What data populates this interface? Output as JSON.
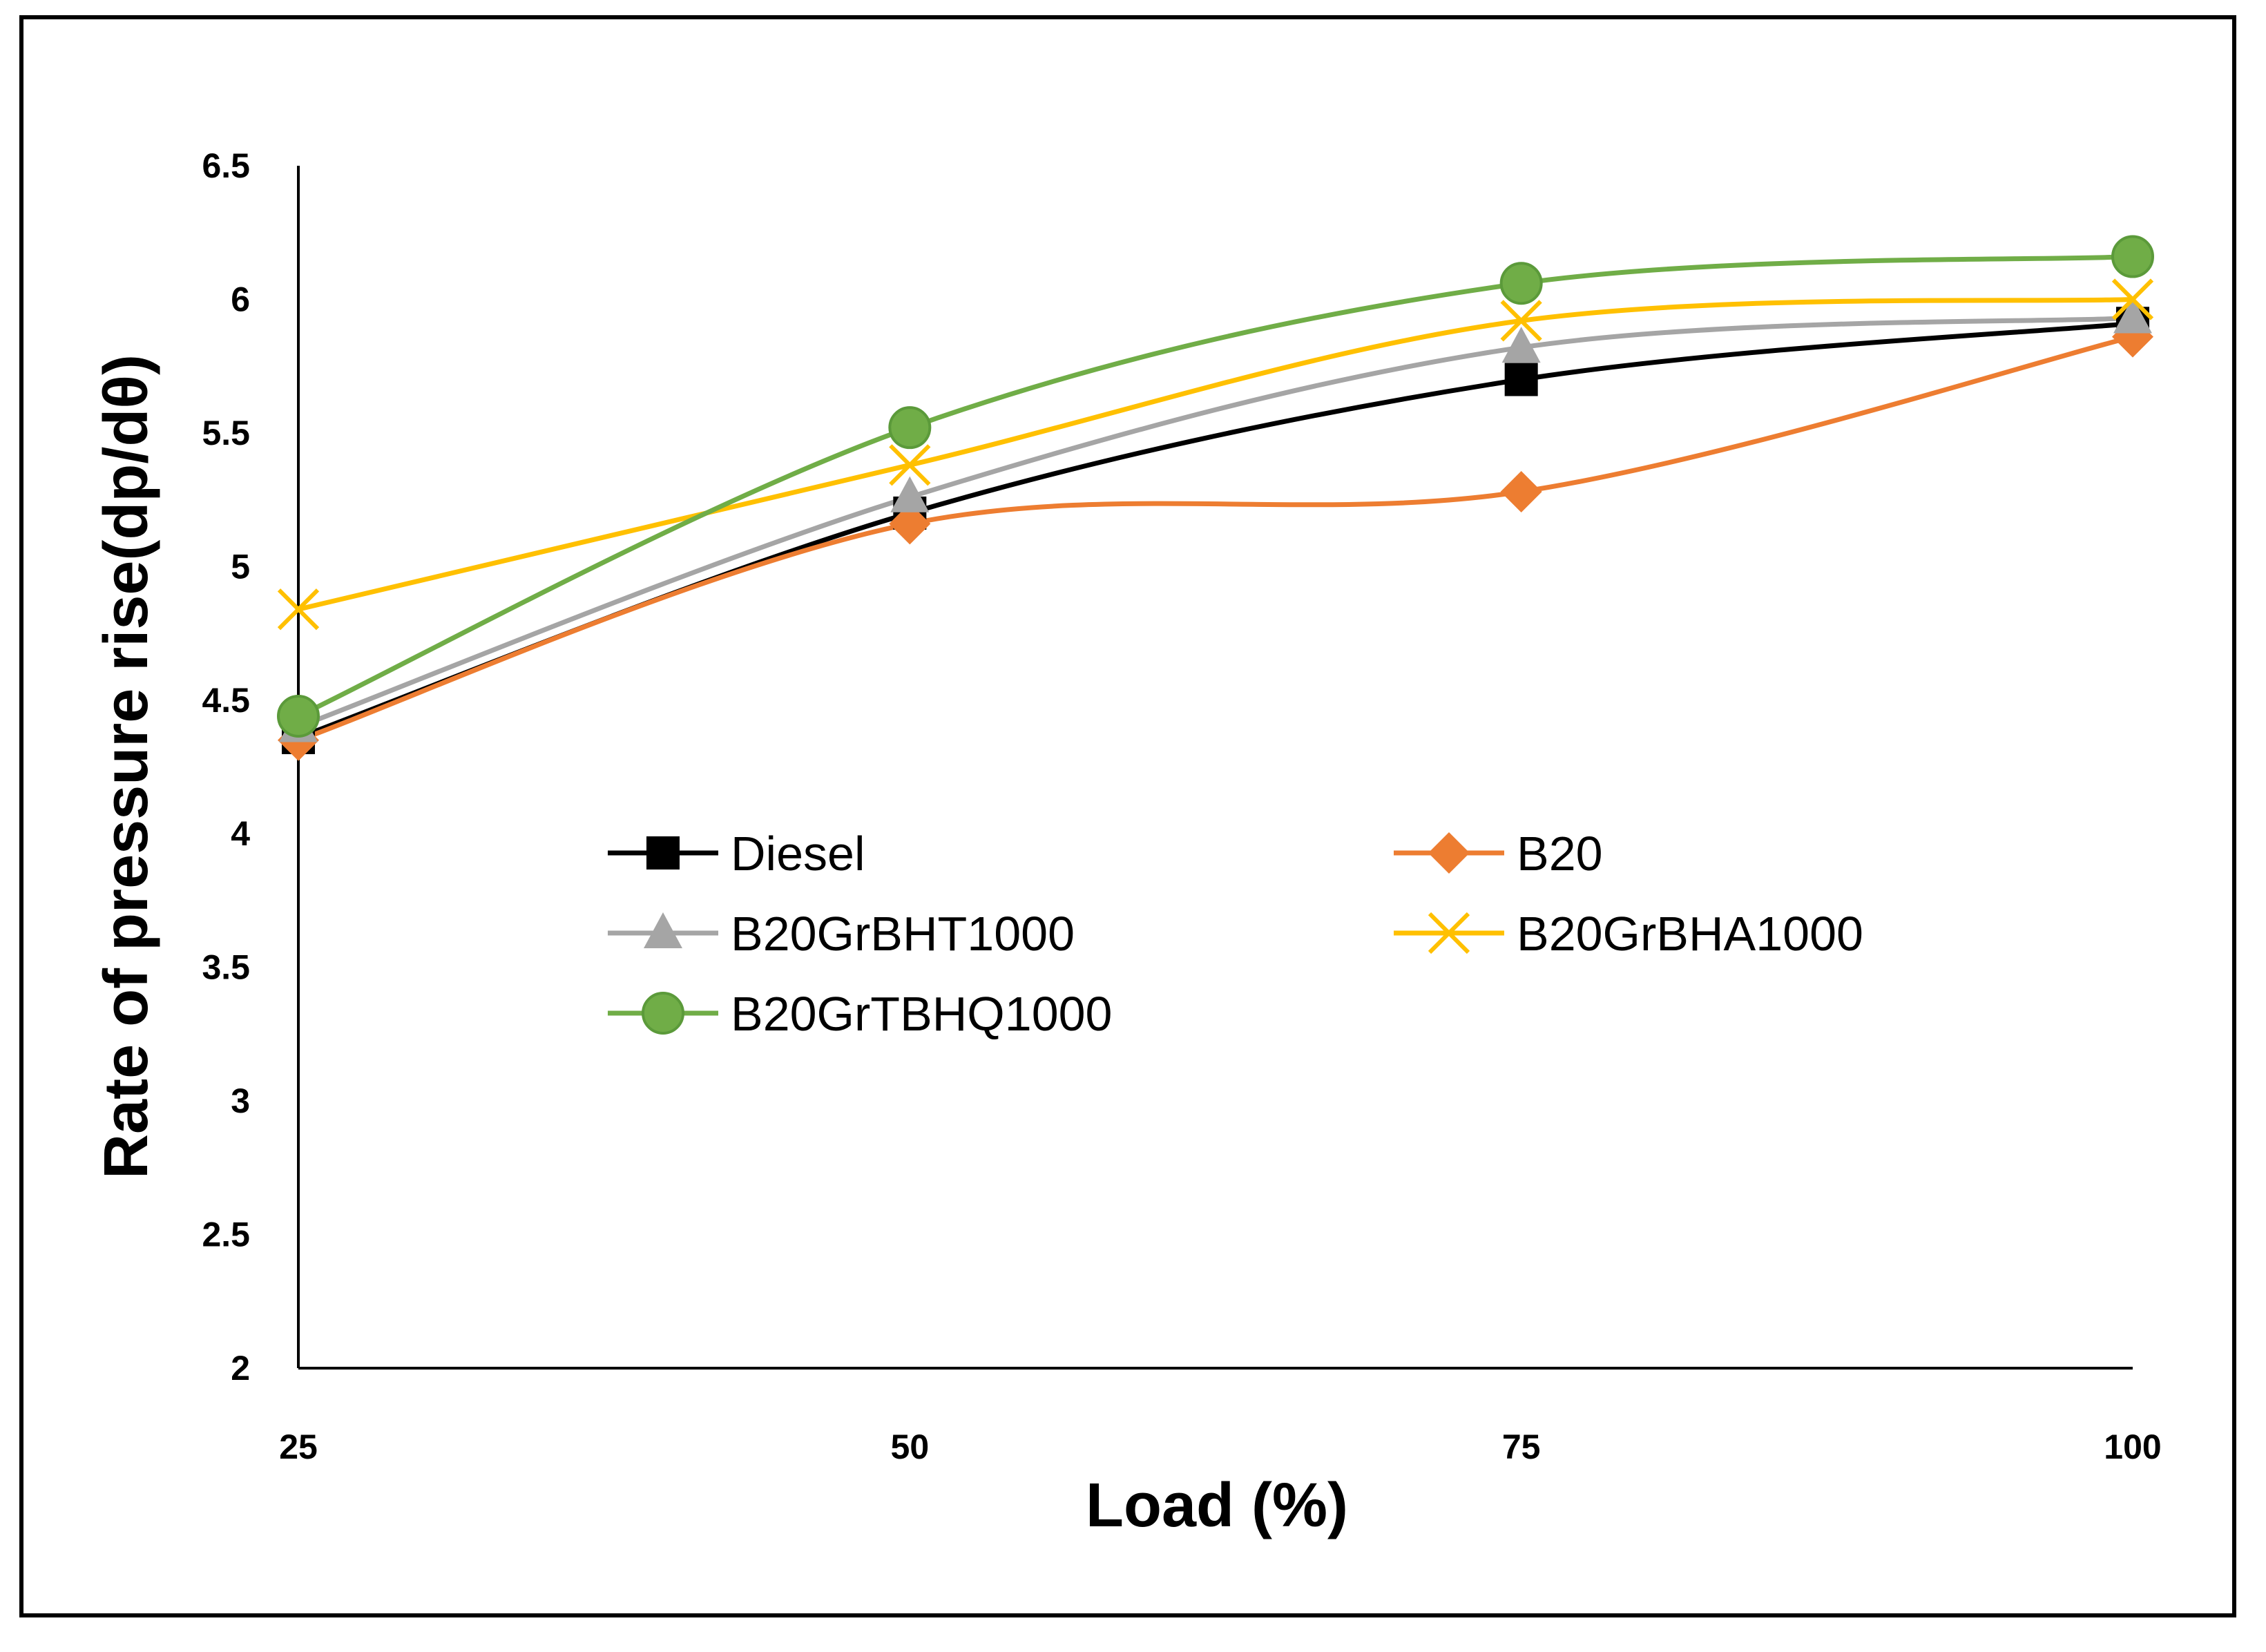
{
  "chart_data": {
    "type": "line",
    "title": "",
    "xlabel": "Load (%)",
    "ylabel": "Rate of pressure rise(dp/dθ)",
    "x": [
      25,
      50,
      75,
      100
    ],
    "x_tick_labels": [
      "25",
      "50",
      "75",
      "100"
    ],
    "ylim": [
      2,
      6.5
    ],
    "y_ticks": [
      2,
      2.5,
      3,
      3.5,
      4,
      4.5,
      5,
      5.5,
      6,
      6.5
    ],
    "y_tick_labels": [
      "2",
      "2.5",
      "3",
      "3.5",
      "4",
      "4.5",
      "5",
      "5.5",
      "6",
      "6.5"
    ],
    "grid": false,
    "smoothed": true,
    "legend_position": "inside-center",
    "series": [
      {
        "name": "Diesel",
        "values": [
          4.36,
          5.2,
          5.7,
          5.91
        ],
        "color": "#000000",
        "marker": "square"
      },
      {
        "name": "B20",
        "values": [
          4.35,
          5.16,
          5.28,
          5.86
        ],
        "color": "#ED7D31",
        "marker": "diamond"
      },
      {
        "name": "B20GrBHT1000",
        "values": [
          4.4,
          5.26,
          5.82,
          5.93
        ],
        "color": "#A5A5A5",
        "marker": "triangle"
      },
      {
        "name": "B20GrBHA1000",
        "values": [
          4.84,
          5.38,
          5.92,
          6.0
        ],
        "color": "#FFC000",
        "marker": "x"
      },
      {
        "name": "B20GrTBHQ1000",
        "values": [
          4.44,
          5.52,
          6.06,
          6.16
        ],
        "color": "#70AD47",
        "marker": "circle"
      }
    ]
  }
}
